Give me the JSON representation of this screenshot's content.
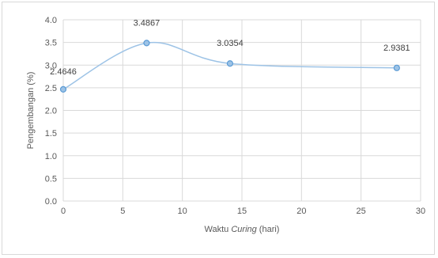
{
  "chart_data": {
    "type": "scatter",
    "xlabel_prefix": "Waktu ",
    "xlabel_italic": "Curing",
    "xlabel_suffix": " (hari)",
    "ylabel": "Pengembangan (%)",
    "xlim": [
      0,
      30
    ],
    "ylim": [
      0.0,
      4.0
    ],
    "x_ticks": [
      "0",
      "5",
      "10",
      "15",
      "20",
      "25",
      "30"
    ],
    "y_ticks": [
      "0.0",
      "0.5",
      "1.0",
      "1.5",
      "2.0",
      "2.5",
      "3.0",
      "3.5",
      "4.0"
    ],
    "grid": true,
    "legend": "none",
    "smooth": true,
    "x": [
      0,
      7,
      14,
      28
    ],
    "values": [
      2.4646,
      3.4867,
      3.0354,
      2.9381
    ],
    "data_labels": [
      "2.4646",
      "3.4867",
      "3.0354",
      "2.9381"
    ],
    "colors": {
      "line": "#9dc3e6",
      "marker_fill": "#9dc3e6",
      "marker_edge": "#5b9bd5",
      "grid": "#d9d9d9",
      "text": "#595959"
    }
  }
}
